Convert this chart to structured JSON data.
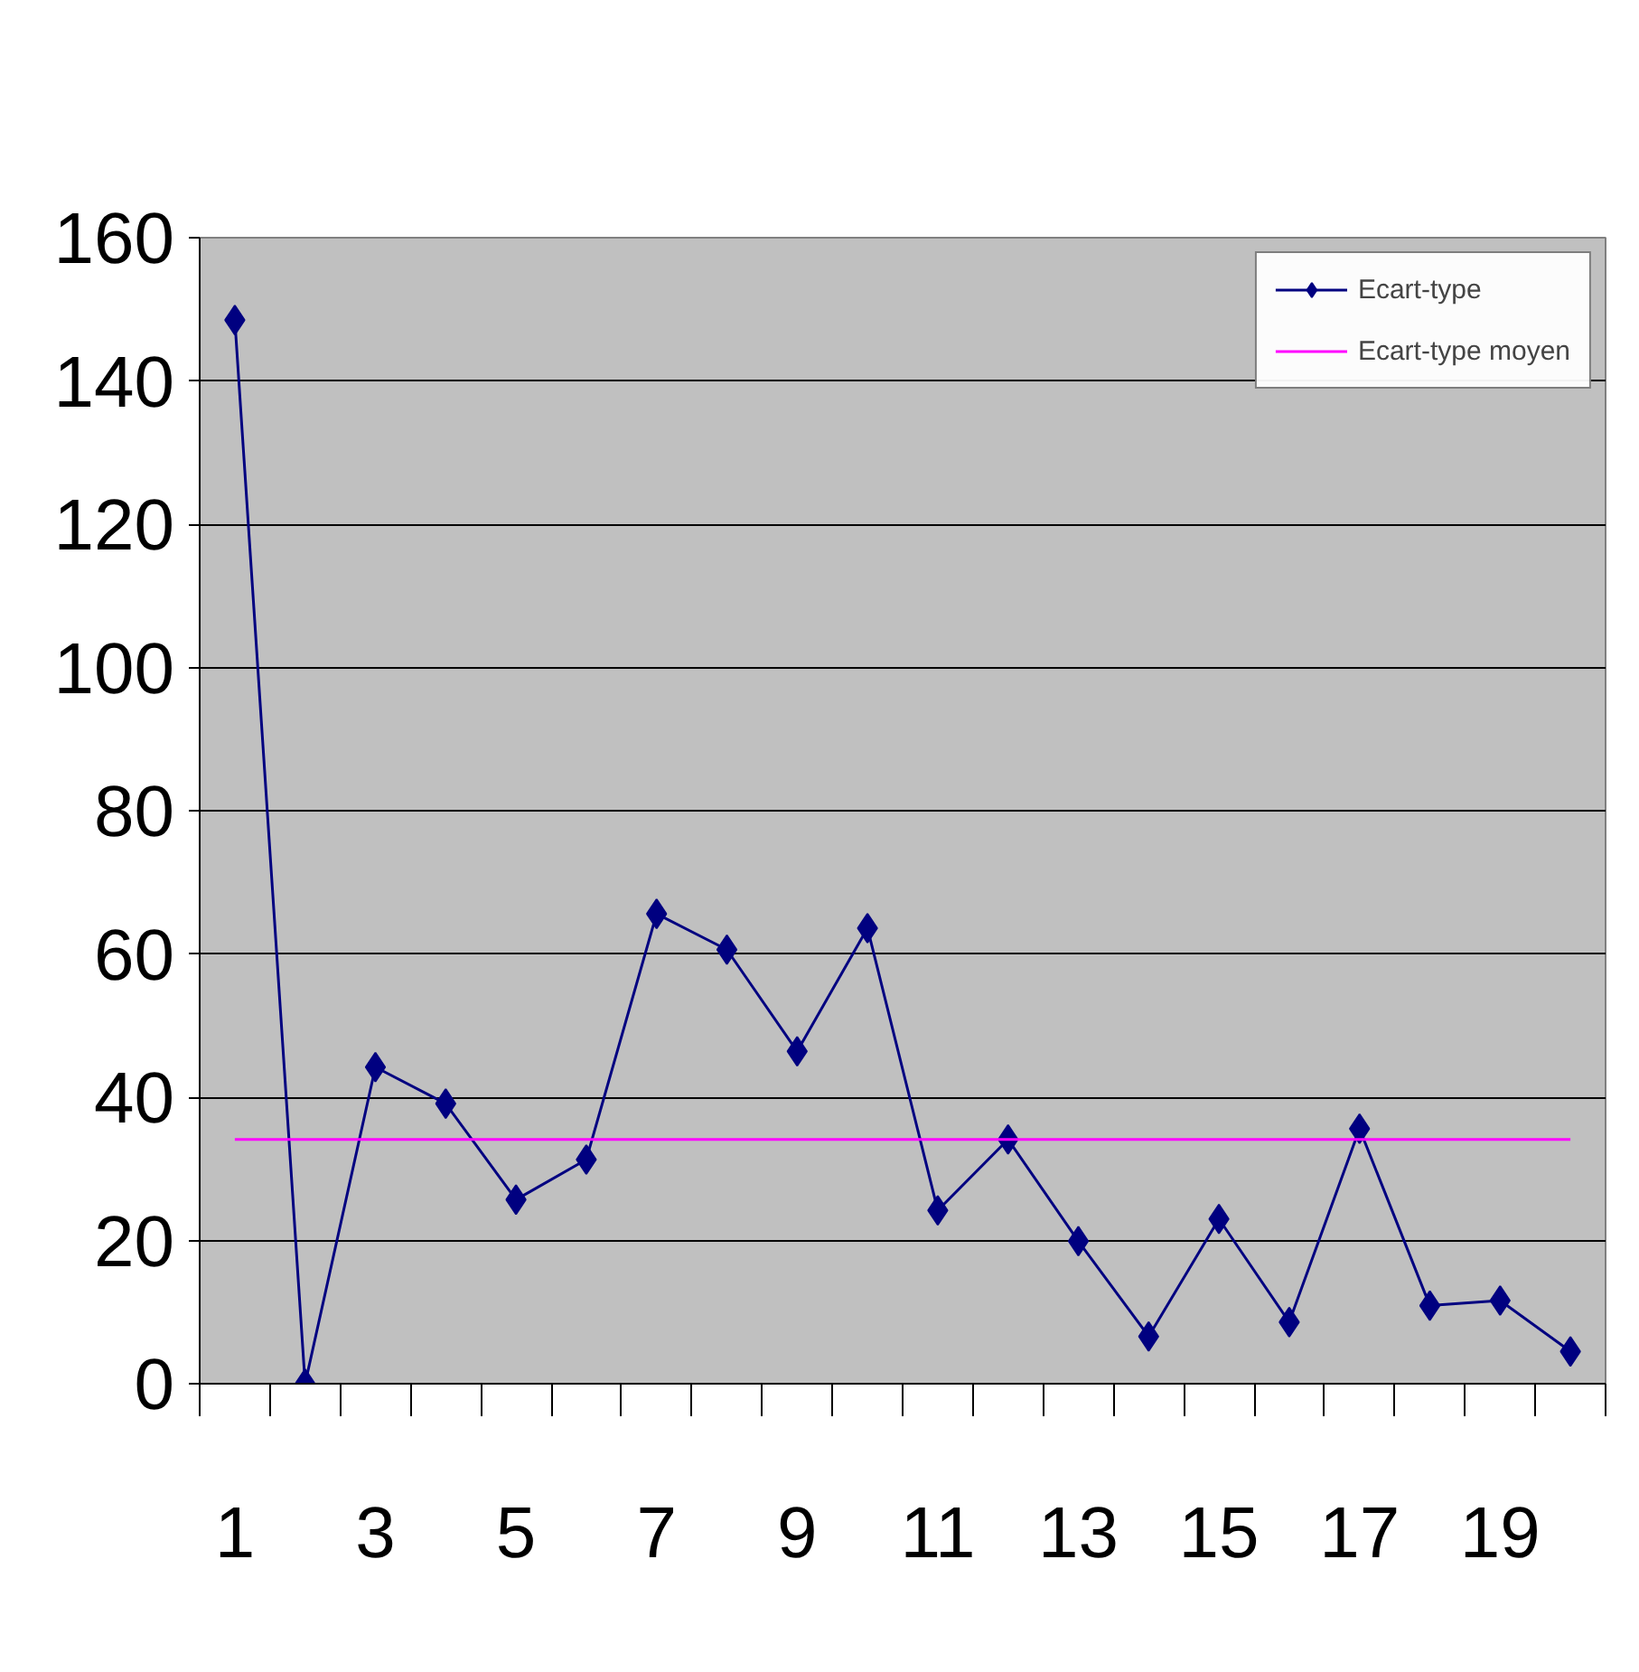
{
  "chart_data": {
    "type": "line",
    "x": [
      1,
      2,
      3,
      4,
      5,
      6,
      7,
      8,
      9,
      10,
      11,
      12,
      13,
      14,
      15,
      16,
      17,
      18,
      19,
      20
    ],
    "series": [
      {
        "name": "Ecart-type",
        "color": "#000080",
        "marker": "diamond",
        "values": [
          148.5,
          0,
          44.2,
          39.1,
          25.7,
          31.3,
          65.6,
          60.6,
          46.4,
          63.6,
          24.2,
          34.1,
          19.9,
          6.6,
          23.0,
          8.6,
          35.6,
          10.9,
          11.6,
          4.5
        ]
      },
      {
        "name": "Ecart-type moyen",
        "color": "#ff00ff",
        "marker": "none",
        "values": [
          34.1,
          34.1,
          34.1,
          34.1,
          34.1,
          34.1,
          34.1,
          34.1,
          34.1,
          34.1,
          34.1,
          34.1,
          34.1,
          34.1,
          34.1,
          34.1,
          34.1,
          34.1,
          34.1,
          34.1
        ]
      }
    ],
    "xlim": [
      0.5,
      20.5
    ],
    "xticks": [
      1,
      3,
      5,
      7,
      9,
      11,
      13,
      15,
      17,
      19
    ],
    "ylim": [
      0,
      160
    ],
    "yticks": [
      0,
      20,
      40,
      60,
      80,
      100,
      120,
      140,
      160
    ],
    "grid": "y",
    "legend": "top right"
  }
}
